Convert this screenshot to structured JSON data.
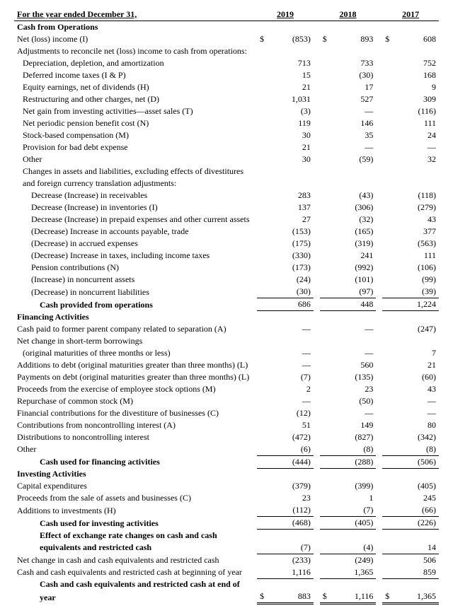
{
  "title": "For the year ended December 31,",
  "years": {
    "y2019": "2019",
    "y2018": "2018",
    "y2017": "2017"
  },
  "sections": {
    "ops": "Cash from Operations",
    "fin": "Financing Activities",
    "inv": "Investing Activities"
  },
  "rows": {
    "net_income": {
      "label": "Net (loss) income (I)",
      "a": "(853)",
      "b": "893",
      "c": "608"
    },
    "adjust_hdr": "Adjustments to reconcile net (loss) income to cash from operations:",
    "dep": {
      "label": "Depreciation, depletion, and amortization",
      "a": "713",
      "b": "733",
      "c": "752"
    },
    "def_tax": {
      "label": "Deferred income taxes (I & P)",
      "a": "15",
      "b": "(30)",
      "c": "168"
    },
    "equity": {
      "label": "Equity earnings, net of dividends (H)",
      "a": "21",
      "b": "17",
      "c": "9"
    },
    "restruct": {
      "label": "Restructuring and other charges, net (D)",
      "a": "1,031",
      "b": "527",
      "c": "309"
    },
    "netgain": {
      "label": "Net gain from investing activities—asset sales (T)",
      "a": "(3)",
      "b": "—",
      "c": "(116)"
    },
    "pension_cost": {
      "label": "Net periodic pension benefit cost (N)",
      "a": "119",
      "b": "146",
      "c": "111"
    },
    "stock_comp": {
      "label": "Stock-based compensation (M)",
      "a": "30",
      "b": "35",
      "c": "24"
    },
    "baddebt": {
      "label": "Provision for bad debt expense",
      "a": "21",
      "b": "—",
      "c": "—"
    },
    "other_ops": {
      "label": "Other",
      "a": "30",
      "b": "(59)",
      "c": "32"
    },
    "changes_hdr1": "Changes in assets and liabilities, excluding effects of divestitures",
    "changes_hdr2": "and foreign currency translation adjustments:",
    "recv": {
      "label": "Decrease (Increase) in receivables",
      "a": "283",
      "b": "(43)",
      "c": "(118)"
    },
    "invent": {
      "label": "Decrease (Increase) in inventories (I)",
      "a": "137",
      "b": "(306)",
      "c": "(279)"
    },
    "prepaid": {
      "label": "Decrease (Increase) in prepaid expenses and other current assets",
      "a": "27",
      "b": "(32)",
      "c": "43"
    },
    "ap": {
      "label": "(Decrease) Increase in accounts payable, trade",
      "a": "(153)",
      "b": "(165)",
      "c": "377"
    },
    "accrued": {
      "label": "(Decrease) in accrued expenses",
      "a": "(175)",
      "b": "(319)",
      "c": "(563)"
    },
    "taxes_inc": {
      "label": "(Decrease) Increase in taxes, including income taxes",
      "a": "(330)",
      "b": "241",
      "c": "111"
    },
    "pension_contrib": {
      "label": "Pension contributions (N)",
      "a": "(173)",
      "b": "(992)",
      "c": "(106)"
    },
    "nc_assets": {
      "label": "(Increase) in noncurrent assets",
      "a": "(24)",
      "b": "(101)",
      "c": "(99)"
    },
    "nc_liab": {
      "label": "(Decrease) in noncurrent liabilities",
      "a": "(30)",
      "b": "(97)",
      "c": "(39)"
    },
    "ops_total": {
      "label": "Cash provided from operations",
      "a": "686",
      "b": "448",
      "c": "1,224"
    },
    "cash_parent": {
      "label": "Cash paid to former parent company related to separation (A)",
      "a": "—",
      "b": "—",
      "c": "(247)"
    },
    "st_borrow1": "Net change in short-term borrowings",
    "st_borrow2": {
      "label": "(original maturities of three months or less)",
      "a": "—",
      "b": "—",
      "c": "7"
    },
    "add_debt": {
      "label": "Additions to debt (original maturities greater than three months) (L)",
      "a": "—",
      "b": "560",
      "c": "21"
    },
    "pay_debt": {
      "label": "Payments on debt (original maturities greater than three months) (L)",
      "a": "(7)",
      "b": "(135)",
      "c": "(60)"
    },
    "stock_opt": {
      "label": "Proceeds from the exercise of employee stock options (M)",
      "a": "2",
      "b": "23",
      "c": "43"
    },
    "repurch": {
      "label": "Repurchase of common stock (M)",
      "a": "—",
      "b": "(50)",
      "c": "—"
    },
    "divest_fin": {
      "label": "Financial contributions for the divestiture of businesses (C)",
      "a": "(12)",
      "b": "—",
      "c": "—"
    },
    "contrib_nci": {
      "label": "Contributions from noncontrolling interest (A)",
      "a": "51",
      "b": "149",
      "c": "80"
    },
    "dist_nci": {
      "label": "Distributions to noncontrolling interest",
      "a": "(472)",
      "b": "(827)",
      "c": "(342)"
    },
    "other_fin": {
      "label": "Other",
      "a": "(6)",
      "b": "(8)",
      "c": "(8)"
    },
    "fin_total": {
      "label": "Cash used for financing activities",
      "a": "(444)",
      "b": "(288)",
      "c": "(506)"
    },
    "capex": {
      "label": "Capital expenditures",
      "a": "(379)",
      "b": "(399)",
      "c": "(405)"
    },
    "proceeds_sale": {
      "label": "Proceeds from the sale of assets and businesses (C)",
      "a": "23",
      "b": "1",
      "c": "245"
    },
    "add_invest": {
      "label": "Additions to investments (H)",
      "a": "(112)",
      "b": "(7)",
      "c": "(66)"
    },
    "inv_total": {
      "label": "Cash used for investing activities",
      "a": "(468)",
      "b": "(405)",
      "c": "(226)"
    },
    "fx1": "Effect of exchange rate changes on cash and cash",
    "fx2": {
      "label": "equivalents and restricted cash",
      "a": "(7)",
      "b": "(4)",
      "c": "14"
    },
    "net_change": {
      "label": "Net change in cash and cash equivalents and restricted cash",
      "a": "(233)",
      "b": "(249)",
      "c": "506"
    },
    "begin_cash": {
      "label": "Cash and cash equivalents and restricted cash at beginning of year",
      "a": "1,116",
      "b": "1,365",
      "c": "859"
    },
    "end1": "Cash and cash equivalents and restricted cash at end of",
    "end2": {
      "label": "year",
      "a": "883",
      "b": "1,116",
      "c": "1,365"
    }
  },
  "currency": "$",
  "styling": {
    "font_family": "Times New Roman",
    "font_size_pt": 10,
    "text_color": "#000000",
    "background_color": "#ffffff",
    "border_color": "#000000"
  }
}
